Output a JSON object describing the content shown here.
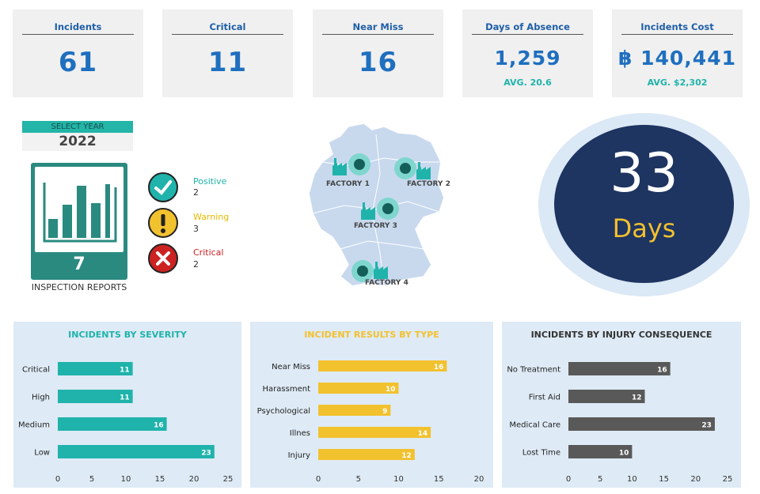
{
  "kpis": {
    "incidents": {
      "title": "Incidents",
      "value": "61"
    },
    "critical": {
      "title": "Critical",
      "value": "11"
    },
    "near_miss": {
      "title": "Near Miss",
      "value": "16"
    },
    "absence": {
      "title": "Days of Absence",
      "value": "1,259",
      "sub": "AVG. 20.6"
    },
    "cost": {
      "title": "Incidents Cost",
      "value": "฿ 140,441",
      "sub": "AVG. $2,302"
    }
  },
  "year": {
    "label": "SELECT YEAR",
    "value": "2022"
  },
  "inspection": {
    "count": "7",
    "label": "INSPECTION REPORTS"
  },
  "statuses": [
    {
      "name": "Positive",
      "count": "2",
      "color": "#1fb3ab"
    },
    {
      "name": "Warning",
      "count": "3",
      "color": "#e6b800"
    },
    {
      "name": "Critical",
      "count": "2",
      "color": "#cc2222"
    }
  ],
  "factories": [
    "FACTORY 1",
    "FACTORY 2",
    "FACTORY 3",
    "FACTORY 4"
  ],
  "days": {
    "value": "33",
    "label": "Days"
  },
  "chart_data": [
    {
      "type": "bar",
      "orientation": "horizontal",
      "title": "INCIDENTS BY SEVERITY",
      "title_color": "#1fb3ab",
      "bar_color": "#1fb3ab",
      "categories": [
        "Critical",
        "High",
        "Medium",
        "Low"
      ],
      "values": [
        11,
        11,
        16,
        23
      ],
      "xticks": [
        0,
        5,
        10,
        15,
        20,
        25
      ],
      "xlim": [
        0,
        25
      ]
    },
    {
      "type": "bar",
      "orientation": "horizontal",
      "title": "INCIDENT RESULTS BY TYPE",
      "title_color": "#f2c12e",
      "bar_color": "#f2c12e",
      "categories": [
        "Near Miss",
        "Harassment",
        "Psychological",
        "Illnes",
        "Injury"
      ],
      "values": [
        16,
        10,
        9,
        14,
        12
      ],
      "xticks": [
        0,
        5,
        10,
        15,
        20
      ],
      "xlim": [
        0,
        20
      ]
    },
    {
      "type": "bar",
      "orientation": "horizontal",
      "title": "INCIDENTS BY INJURY CONSEQUENCE",
      "title_color": "#333333",
      "bar_color": "#595959",
      "categories": [
        "No Treatment",
        "First Aid",
        "Medical Care",
        "Lost Time"
      ],
      "values": [
        16,
        12,
        23,
        10
      ],
      "xticks": [
        0,
        5,
        10,
        15,
        20,
        25
      ],
      "xlim": [
        0,
        25
      ]
    }
  ]
}
